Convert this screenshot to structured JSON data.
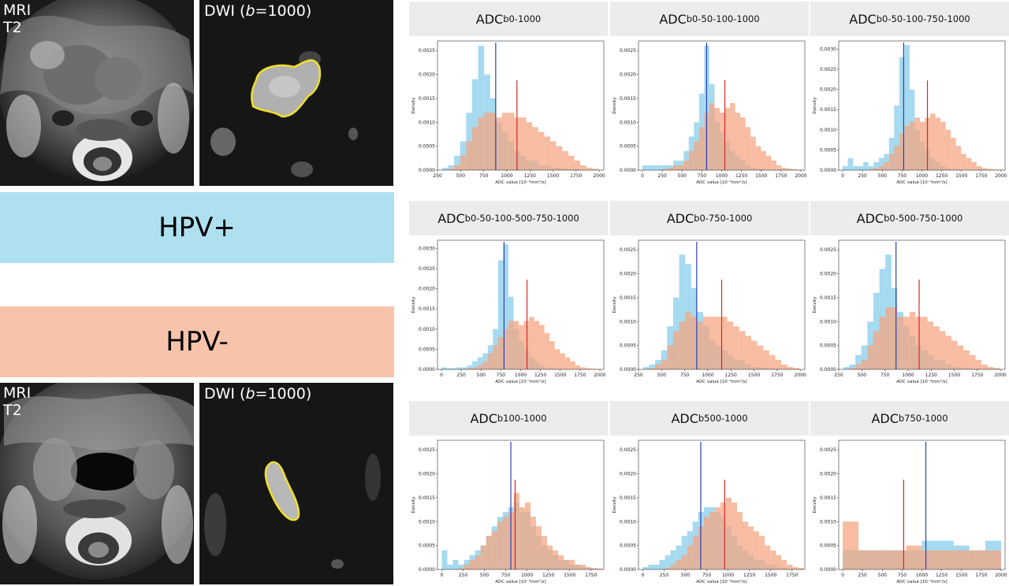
{
  "images": [
    {
      "modality_line1": "MRI",
      "modality_line2": "T2"
    },
    {
      "dwi_prefix": "DWI (",
      "dwi_b": "b",
      "dwi_suffix": "=1000)"
    },
    {
      "modality_line1": "MRI",
      "modality_line2": "T2"
    },
    {
      "dwi_prefix": "DWI (",
      "dwi_b": "b",
      "dwi_suffix": "=1000)"
    }
  ],
  "legend": {
    "hpv_pos": "HPV+",
    "hpv_neg": "HPV-",
    "hpv_pos_color": "#aee0f0",
    "hpv_neg_color": "#f8c3ab"
  },
  "colors": {
    "pos_bar": "#87ceeb",
    "neg_bar": "#f4a582",
    "pos_line": "#2b3fb6",
    "neg_line": "#d62728"
  },
  "chart_data": [
    {
      "type": "bar",
      "title_main": "ADC",
      "title_sub": "b0-1000",
      "xlabel": "ADC value [10⁻⁶mm²/s]",
      "ylabel": "Density",
      "xlim": [
        250,
        2050
      ],
      "ylim": [
        0,
        0.0027
      ],
      "xticks": [
        250,
        500,
        750,
        1000,
        1250,
        1500,
        1750,
        2000
      ],
      "yticks": [
        0.0,
        0.0005,
        0.001,
        0.0015,
        0.002,
        0.0025
      ],
      "ytick_labels": [
        "0.0000",
        "0.0005",
        "0.0010",
        "0.0015",
        "0.0020",
        "0.0025"
      ],
      "bin_start": 300,
      "bin_width": 65,
      "series": [
        {
          "group": "pos",
          "values": [
            5e-05,
            0.0001,
            0.0003,
            0.0006,
            0.0012,
            0.0019,
            0.0026,
            0.002,
            0.0015,
            0.001,
            0.0008,
            0.0006,
            0.0004,
            0.0003,
            0.0002,
            0.0002,
            0.0001,
            0.0001,
            5e-05,
            5e-05,
            3e-05,
            2e-05,
            2e-05,
            1e-05,
            1e-05,
            1e-05
          ]
        },
        {
          "group": "neg",
          "values": [
            0,
            3e-05,
            0.0001,
            0.0003,
            0.0006,
            0.0009,
            0.0011,
            0.0012,
            0.0012,
            0.0011,
            0.0012,
            0.0012,
            0.0011,
            0.0011,
            0.001,
            0.0009,
            0.0008,
            0.0007,
            0.0006,
            0.0005,
            0.0004,
            0.0003,
            0.0002,
            0.0001,
            5e-05,
            3e-05
          ]
        }
      ],
      "median_pos": 880,
      "median_neg": 1110
    },
    {
      "type": "bar",
      "title_main": "ADC",
      "title_sub": "b0-50-100-1000",
      "xlabel": "ADC value [10⁻⁶mm²/s]",
      "ylabel": "Density",
      "xlim": [
        -50,
        2050
      ],
      "ylim": [
        0,
        0.0027
      ],
      "xticks": [
        0,
        250,
        500,
        750,
        1000,
        1250,
        1500,
        1750,
        2000
      ],
      "yticks": [
        0.0,
        0.0005,
        0.001,
        0.0015,
        0.002,
        0.0025
      ],
      "ytick_labels": [
        "0.0000",
        "0.0005",
        "0.0010",
        "0.0015",
        "0.0020",
        "0.0025"
      ],
      "bin_start": 0,
      "bin_width": 65,
      "series": [
        {
          "group": "pos",
          "values": [
            0.0001,
            0.0001,
            0.0001,
            0.0001,
            0.0001,
            0.0001,
            0.0002,
            0.0002,
            0.0004,
            0.0007,
            0.001,
            0.0016,
            0.0026,
            0.0018,
            0.001,
            0.0008,
            0.0006,
            0.0004,
            0.0003,
            0.0002,
            0.0001,
            5e-05,
            3e-05,
            2e-05,
            1e-05,
            1e-05,
            1e-05,
            1e-05,
            1e-05,
            1e-05,
            1e-05
          ]
        },
        {
          "group": "neg",
          "values": [
            0,
            0,
            0,
            0,
            3e-05,
            5e-05,
            0.0001,
            0.0001,
            0.0002,
            0.0004,
            0.0006,
            0.0009,
            0.0012,
            0.0014,
            0.0013,
            0.0012,
            0.0013,
            0.0014,
            0.0012,
            0.0011,
            0.0009,
            0.0007,
            0.0005,
            0.0004,
            0.0003,
            0.0002,
            0.0001,
            5e-05,
            3e-05,
            2e-05,
            1e-05
          ]
        }
      ],
      "median_pos": 810,
      "median_neg": 1040
    },
    {
      "type": "bar",
      "title_main": "ADC",
      "title_sub": "b0-50-100-750-1000",
      "xlabel": "ADC value [10⁻⁶mm²/s]",
      "ylabel": "Density",
      "xlim": [
        -50,
        2050
      ],
      "ylim": [
        0,
        0.0032
      ],
      "xticks": [
        0,
        250,
        500,
        750,
        1000,
        1250,
        1500,
        1750,
        2000
      ],
      "yticks": [
        0.0,
        0.0005,
        0.001,
        0.0015,
        0.002,
        0.0025,
        0.003
      ],
      "ytick_labels": [
        "0.0000",
        "0.0005",
        "0.0010",
        "0.0015",
        "0.0020",
        "0.0025",
        "0.0030"
      ],
      "bin_start": 0,
      "bin_width": 65,
      "series": [
        {
          "group": "pos",
          "values": [
            0.0001,
            0.0003,
            0.0001,
            0.0001,
            0.0002,
            0.0001,
            0.0002,
            0.0003,
            0.0004,
            0.0008,
            0.0016,
            0.0028,
            0.0031,
            0.002,
            0.001,
            0.0007,
            0.0005,
            0.0003,
            0.0002,
            0.0001,
            5e-05,
            3e-05,
            2e-05,
            1e-05,
            1e-05,
            1e-05,
            1e-05,
            1e-05,
            1e-05,
            1e-05,
            1e-05
          ]
        },
        {
          "group": "neg",
          "values": [
            0,
            0,
            0,
            0,
            0,
            3e-05,
            5e-05,
            0.0001,
            0.0002,
            0.0004,
            0.0006,
            0.0009,
            0.0011,
            0.0012,
            0.0013,
            0.0012,
            0.0013,
            0.0014,
            0.0013,
            0.0012,
            0.001,
            0.0008,
            0.0006,
            0.0004,
            0.0003,
            0.0002,
            0.0001,
            5e-05,
            3e-05,
            2e-05,
            1e-05
          ]
        }
      ],
      "median_pos": 770,
      "median_neg": 1070
    },
    {
      "type": "bar",
      "title_main": "ADC",
      "title_sub": "b0-50-100-500-750-1000",
      "xlabel": "ADC value [10⁻⁶mm²/s]",
      "ylabel": "Density",
      "xlim": [
        -50,
        2050
      ],
      "ylim": [
        0,
        0.0032
      ],
      "xticks": [
        0,
        250,
        500,
        750,
        1000,
        1250,
        1500,
        1750,
        2000
      ],
      "yticks": [
        0.0,
        0.0005,
        0.001,
        0.0015,
        0.002,
        0.0025,
        0.003
      ],
      "ytick_labels": [
        "0.0000",
        "0.0005",
        "0.0010",
        "0.0015",
        "0.0020",
        "0.0025",
        "0.0030"
      ],
      "bin_start": 0,
      "bin_width": 65,
      "series": [
        {
          "group": "pos",
          "values": [
            5e-05,
            3e-05,
            3e-05,
            5e-05,
            5e-05,
            0.0001,
            0.0002,
            0.0003,
            0.0004,
            0.0006,
            0.001,
            0.0027,
            0.0031,
            0.0018,
            0.001,
            0.0007,
            0.0005,
            0.0003,
            0.0002,
            0.0001,
            5e-05,
            3e-05,
            2e-05,
            1e-05,
            1e-05,
            1e-05,
            1e-05,
            1e-05,
            1e-05,
            1e-05,
            1e-05
          ]
        },
        {
          "group": "neg",
          "values": [
            0,
            0,
            0,
            0,
            0,
            3e-05,
            5e-05,
            0.0001,
            0.0002,
            0.0004,
            0.0006,
            0.0008,
            0.001,
            0.0012,
            0.0012,
            0.0011,
            0.0012,
            0.0013,
            0.0012,
            0.0011,
            0.0009,
            0.0007,
            0.0005,
            0.0004,
            0.0003,
            0.0002,
            0.0001,
            5e-05,
            3e-05,
            2e-05,
            1e-05
          ]
        }
      ],
      "median_pos": 790,
      "median_neg": 1080
    },
    {
      "type": "bar",
      "title_main": "ADC",
      "title_sub": "b0-750-1000",
      "xlabel": "ADC value [10⁻⁶mm²/s]",
      "ylabel": "Density",
      "xlim": [
        250,
        2050
      ],
      "ylim": [
        0,
        0.0027
      ],
      "xticks": [
        250,
        500,
        750,
        1000,
        1250,
        1500,
        1750,
        2000
      ],
      "yticks": [
        0.0,
        0.0005,
        0.001,
        0.0015,
        0.002,
        0.0025
      ],
      "ytick_labels": [
        "0.0000",
        "0.0005",
        "0.0010",
        "0.0015",
        "0.0020",
        "0.0025"
      ],
      "bin_start": 300,
      "bin_width": 65,
      "series": [
        {
          "group": "pos",
          "values": [
            5e-05,
            0.0001,
            0.0002,
            0.0004,
            0.0009,
            0.0015,
            0.0024,
            0.0022,
            0.0017,
            0.0012,
            0.0009,
            0.0006,
            0.0005,
            0.0004,
            0.0003,
            0.0002,
            0.0002,
            0.0001,
            5e-05,
            5e-05,
            3e-05,
            2e-05,
            2e-05,
            1e-05,
            1e-05,
            1e-05
          ]
        },
        {
          "group": "neg",
          "values": [
            0,
            3e-05,
            0.0001,
            0.0002,
            0.0005,
            0.0008,
            0.001,
            0.0012,
            0.0011,
            0.001,
            0.0011,
            0.0011,
            0.0011,
            0.0011,
            0.001,
            0.0009,
            0.0008,
            0.0007,
            0.0006,
            0.0005,
            0.0004,
            0.0003,
            0.0002,
            0.0001,
            5e-05,
            3e-05
          ]
        }
      ],
      "median_pos": 880,
      "median_neg": 1150
    },
    {
      "type": "bar",
      "title_main": "ADC",
      "title_sub": "b0-500-750-1000",
      "xlabel": "ADC value [10⁻⁶mm²/s]",
      "ylabel": "Density",
      "xlim": [
        250,
        2050
      ],
      "ylim": [
        0,
        0.0027
      ],
      "xticks": [
        250,
        500,
        750,
        1000,
        1250,
        1500,
        1750,
        2000
      ],
      "yticks": [
        0.0,
        0.0005,
        0.001,
        0.0015,
        0.002,
        0.0025
      ],
      "ytick_labels": [
        "0.0000",
        "0.0005",
        "0.0010",
        "0.0015",
        "0.0020",
        "0.0025"
      ],
      "bin_start": 300,
      "bin_width": 65,
      "series": [
        {
          "group": "pos",
          "values": [
            5e-05,
            0.0001,
            0.0003,
            0.0005,
            0.001,
            0.0016,
            0.0021,
            0.0024,
            0.0017,
            0.0012,
            0.0009,
            0.0007,
            0.0005,
            0.0004,
            0.0003,
            0.0002,
            0.0002,
            0.0001,
            5e-05,
            5e-05,
            3e-05,
            2e-05,
            2e-05,
            1e-05,
            1e-05,
            1e-05
          ]
        },
        {
          "group": "neg",
          "values": [
            0,
            3e-05,
            0.0001,
            0.0002,
            0.0005,
            0.0008,
            0.0011,
            0.0013,
            0.0013,
            0.0011,
            0.0011,
            0.0012,
            0.0011,
            0.0011,
            0.001,
            0.0009,
            0.0008,
            0.0007,
            0.0006,
            0.0005,
            0.0004,
            0.0003,
            0.0002,
            0.0001,
            5e-05,
            3e-05
          ]
        }
      ],
      "median_pos": 870,
      "median_neg": 1120
    },
    {
      "type": "bar",
      "title_main": "ADC",
      "title_sub": "b100-1000",
      "xlabel": "ADC value [10⁻⁶mm²/s]",
      "ylabel": "Density",
      "xlim": [
        -50,
        1900
      ],
      "ylim": [
        0,
        0.0027
      ],
      "xticks": [
        0,
        250,
        500,
        750,
        1000,
        1250,
        1500,
        1750
      ],
      "yticks": [
        0.0,
        0.0005,
        0.001,
        0.0015,
        0.002,
        0.0025
      ],
      "ytick_labels": [
        "0.0000",
        "0.0005",
        "0.0010",
        "0.0015",
        "0.0020",
        "0.0025"
      ],
      "bin_start": 0,
      "bin_width": 65,
      "series": [
        {
          "group": "pos",
          "values": [
            0.0004,
            0.0001,
            0.0002,
            0.0001,
            0.0002,
            0.0003,
            0.0004,
            0.0005,
            0.0007,
            0.0009,
            0.0011,
            0.0012,
            0.0013,
            0.0014,
            0.0012,
            0.0012,
            0.0009,
            0.0007,
            0.0005,
            0.0004,
            0.0003,
            0.0002,
            0.0002,
            0.0001,
            0.0001,
            5e-05,
            3e-05,
            2e-05,
            1e-05
          ]
        },
        {
          "group": "neg",
          "values": [
            0,
            0,
            0,
            3e-05,
            0.0001,
            0.0002,
            0.0003,
            0.0005,
            0.0007,
            0.0008,
            0.001,
            0.0011,
            0.0012,
            0.0016,
            0.0013,
            0.0014,
            0.0011,
            0.0009,
            0.0007,
            0.0005,
            0.0004,
            0.0003,
            0.0002,
            0.0002,
            0.0001,
            0.0001,
            5e-05,
            3e-05,
            2e-05
          ]
        }
      ],
      "median_pos": 810,
      "median_neg": 860
    },
    {
      "type": "bar",
      "title_main": "ADC",
      "title_sub": "b500-1000",
      "xlabel": "ADC value [10⁻⁶mm²/s]",
      "ylabel": "Density",
      "xlim": [
        -50,
        1900
      ],
      "ylim": [
        0,
        0.0027
      ],
      "xticks": [
        0,
        250,
        500,
        750,
        1000,
        1250,
        1500,
        1750
      ],
      "yticks": [
        0.0,
        0.0005,
        0.001,
        0.0015,
        0.002,
        0.0025
      ],
      "ytick_labels": [
        "0.0000",
        "0.0005",
        "0.0010",
        "0.0015",
        "0.0020",
        "0.0025"
      ],
      "bin_start": 0,
      "bin_width": 65,
      "series": [
        {
          "group": "pos",
          "values": [
            5e-05,
            0.0001,
            0.0001,
            0.0002,
            0.0003,
            0.0004,
            0.0005,
            0.0007,
            0.0008,
            0.001,
            0.0012,
            0.0013,
            0.0013,
            0.0012,
            0.0011,
            0.0009,
            0.0007,
            0.0005,
            0.0004,
            0.0003,
            0.0002,
            0.0002,
            0.0001,
            0.0001,
            5e-05,
            3e-05,
            2e-05,
            1e-05,
            1e-05
          ]
        },
        {
          "group": "neg",
          "values": [
            0,
            0,
            0,
            0,
            3e-05,
            0.0001,
            0.0002,
            0.0003,
            0.0005,
            0.0007,
            0.0009,
            0.0011,
            0.0012,
            0.0013,
            0.0014,
            0.0015,
            0.0014,
            0.0012,
            0.001,
            0.0009,
            0.0008,
            0.0007,
            0.0005,
            0.0004,
            0.0003,
            0.0002,
            0.0001,
            5e-05,
            3e-05
          ]
        }
      ],
      "median_pos": 680,
      "median_neg": 960
    },
    {
      "type": "bar",
      "title_main": "ADC",
      "title_sub": "b750-1000",
      "xlabel": "ADC value [10⁻⁶mm²/s]",
      "ylabel": "Density",
      "xlim": [
        -50,
        2050
      ],
      "ylim": [
        0,
        0.0027
      ],
      "xticks": [
        0,
        250,
        500,
        750,
        1000,
        1250,
        1500,
        1750,
        2000
      ],
      "yticks": [
        0.0,
        0.0005,
        0.001,
        0.0015,
        0.002,
        0.0025
      ],
      "ytick_labels": [
        "0.0000",
        "0.0005",
        "0.0010",
        "0.0015",
        "0.0020",
        "0.0025"
      ],
      "bin_start": 0,
      "bin_width": 200,
      "series": [
        {
          "group": "pos",
          "values": [
            0.0004,
            0.0004,
            0.0004,
            0.0004,
            0.0004,
            0.0006,
            0.0006,
            0.0005,
            0.0004,
            0.0006
          ]
        },
        {
          "group": "neg",
          "values": [
            0.001,
            0.0004,
            0.0004,
            0.0004,
            0.0005,
            0.0004,
            0.0004,
            0.0004,
            0.0004,
            0.0004
          ]
        }
      ],
      "median_pos": 1050,
      "median_neg": 770
    }
  ]
}
